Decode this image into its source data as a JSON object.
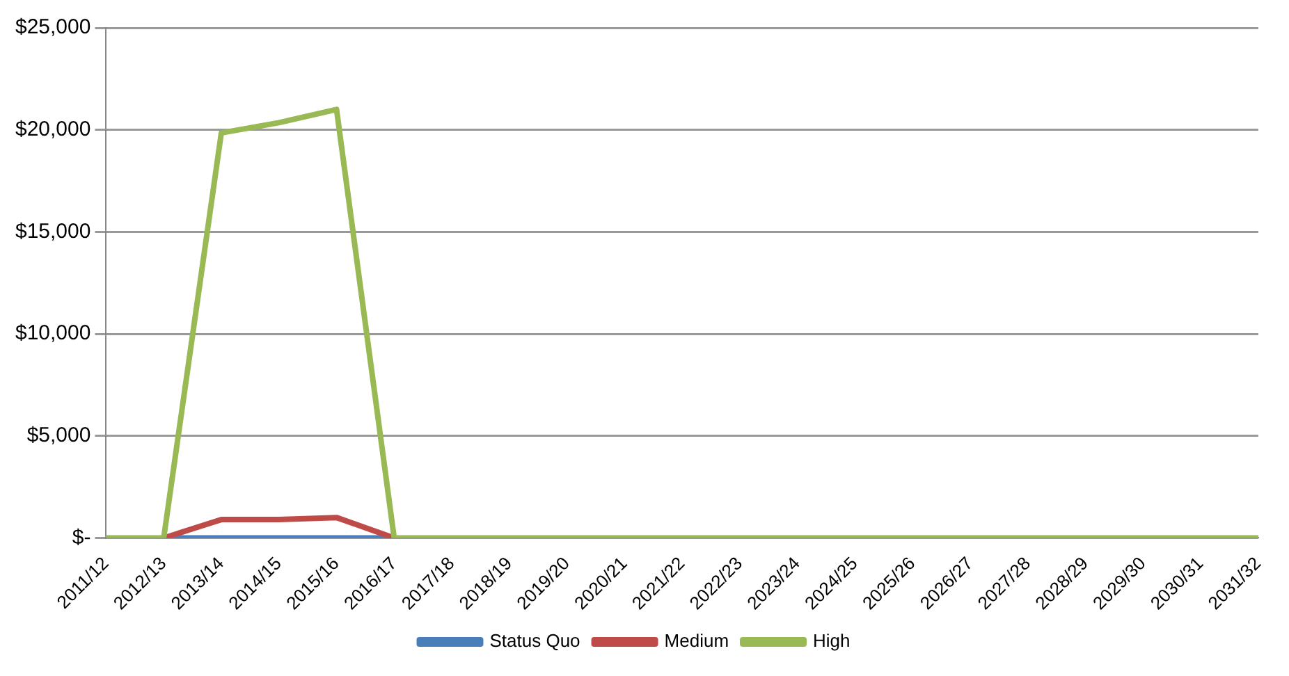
{
  "chart_data": {
    "type": "line",
    "categories": [
      "2011/12",
      "2012/13",
      "2013/14",
      "2014/15",
      "2015/16",
      "2016/17",
      "2017/18",
      "2018/19",
      "2019/20",
      "2020/21",
      "2021/22",
      "2022/23",
      "2023/24",
      "2024/25",
      "2025/26",
      "2026/27",
      "2027/28",
      "2028/29",
      "2029/30",
      "2030/31",
      "2031/32"
    ],
    "series": [
      {
        "name": "Status Quo",
        "color": "#4a7ebb",
        "values": [
          null,
          0,
          0,
          0,
          0,
          0,
          null,
          null,
          null,
          null,
          null,
          null,
          null,
          null,
          null,
          null,
          null,
          null,
          null,
          null,
          null
        ]
      },
      {
        "name": "Medium",
        "color": "#be4b48",
        "values": [
          null,
          0,
          900,
          900,
          1000,
          0,
          null,
          null,
          null,
          null,
          null,
          null,
          null,
          null,
          null,
          null,
          null,
          null,
          null,
          null,
          null
        ]
      },
      {
        "name": "High",
        "color": "#98b954",
        "values": [
          0,
          0,
          19850,
          20350,
          21000,
          0,
          0,
          0,
          0,
          0,
          0,
          0,
          0,
          0,
          0,
          0,
          0,
          0,
          0,
          0,
          0
        ]
      }
    ],
    "ylim": [
      0,
      25000
    ],
    "yticks": [
      {
        "value": 0,
        "label": "$-"
      },
      {
        "value": 5000,
        "label": "$5,000"
      },
      {
        "value": 10000,
        "label": "$10,000"
      },
      {
        "value": 15000,
        "label": "$15,000"
      },
      {
        "value": 20000,
        "label": "$20,000"
      },
      {
        "value": 25000,
        "label": "$25,000"
      }
    ],
    "grid": "y",
    "legend": "bottom",
    "marker": "none",
    "line_style": "solid"
  }
}
